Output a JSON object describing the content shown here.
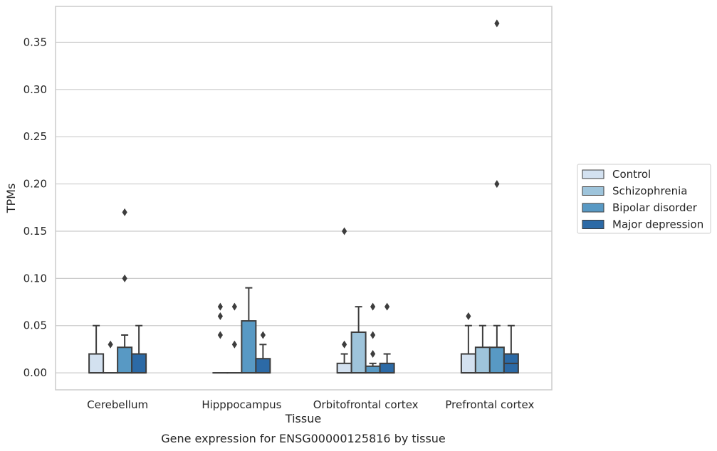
{
  "chart_data": {
    "type": "box",
    "xlabel": "Tissue",
    "ylabel": "TPMs",
    "caption": "Gene expression for ENSG00000125816 by tissue",
    "ylim": [
      -0.018,
      0.388
    ],
    "yticks": [
      "0.00",
      "0.05",
      "0.10",
      "0.15",
      "0.20",
      "0.25",
      "0.30",
      "0.35"
    ],
    "grid": "horizontal",
    "legend_position": "right",
    "categories": [
      "Cerebellum",
      "Hipppocampus",
      "Orbitofrontal cortex",
      "Prefrontal cortex"
    ],
    "series": [
      {
        "name": "Control",
        "color": "#d3e1f0",
        "boxes": [
          {
            "q1": 0.0,
            "median": 0.0,
            "q3": 0.02,
            "whisker_low": 0.0,
            "whisker_high": 0.05,
            "outliers": []
          },
          {
            "q1": 0.0,
            "median": 0.0,
            "q3": 0.0,
            "whisker_low": 0.0,
            "whisker_high": 0.0,
            "outliers": [
              0.04,
              0.06,
              0.07
            ]
          },
          {
            "q1": 0.0,
            "median": 0.0,
            "q3": 0.01,
            "whisker_low": 0.0,
            "whisker_high": 0.02,
            "outliers": [
              0.03,
              0.15
            ]
          },
          {
            "q1": 0.0,
            "median": 0.0,
            "q3": 0.02,
            "whisker_low": 0.0,
            "whisker_high": 0.05,
            "outliers": [
              0.06
            ]
          }
        ]
      },
      {
        "name": "Schizophrenia",
        "color": "#9ec4db",
        "boxes": [
          {
            "q1": 0.0,
            "median": 0.0,
            "q3": 0.0,
            "whisker_low": 0.0,
            "whisker_high": 0.0,
            "outliers": [
              0.03
            ]
          },
          {
            "q1": 0.0,
            "median": 0.0,
            "q3": 0.0,
            "whisker_low": 0.0,
            "whisker_high": 0.0,
            "outliers": [
              0.03,
              0.07
            ]
          },
          {
            "q1": 0.0,
            "median": 0.0,
            "q3": 0.043,
            "whisker_low": 0.0,
            "whisker_high": 0.07,
            "outliers": []
          },
          {
            "q1": 0.0,
            "median": 0.0,
            "q3": 0.027,
            "whisker_low": 0.0,
            "whisker_high": 0.05,
            "outliers": []
          }
        ]
      },
      {
        "name": "Bipolar disorder",
        "color": "#5899c4",
        "boxes": [
          {
            "q1": 0.0,
            "median": 0.0,
            "q3": 0.027,
            "whisker_low": 0.0,
            "whisker_high": 0.04,
            "outliers": [
              0.1,
              0.17
            ]
          },
          {
            "q1": 0.0,
            "median": 0.0,
            "q3": 0.055,
            "whisker_low": 0.0,
            "whisker_high": 0.09,
            "outliers": []
          },
          {
            "q1": 0.0,
            "median": 0.0,
            "q3": 0.007,
            "whisker_low": 0.0,
            "whisker_high": 0.01,
            "outliers": [
              0.02,
              0.04,
              0.07
            ]
          },
          {
            "q1": 0.0,
            "median": 0.0,
            "q3": 0.027,
            "whisker_low": 0.0,
            "whisker_high": 0.05,
            "outliers": [
              0.2,
              0.37
            ]
          }
        ]
      },
      {
        "name": "Major depression",
        "color": "#2c6aa6",
        "boxes": [
          {
            "q1": 0.0,
            "median": 0.0,
            "q3": 0.02,
            "whisker_low": 0.0,
            "whisker_high": 0.05,
            "outliers": []
          },
          {
            "q1": 0.0,
            "median": 0.0,
            "q3": 0.015,
            "whisker_low": 0.0,
            "whisker_high": 0.03,
            "outliers": [
              0.04
            ]
          },
          {
            "q1": 0.0,
            "median": 0.0,
            "q3": 0.01,
            "whisker_low": 0.0,
            "whisker_high": 0.02,
            "outliers": [
              0.07
            ]
          },
          {
            "q1": 0.0,
            "median": 0.01,
            "q3": 0.02,
            "whisker_low": 0.0,
            "whisker_high": 0.05,
            "outliers": []
          }
        ]
      }
    ]
  }
}
